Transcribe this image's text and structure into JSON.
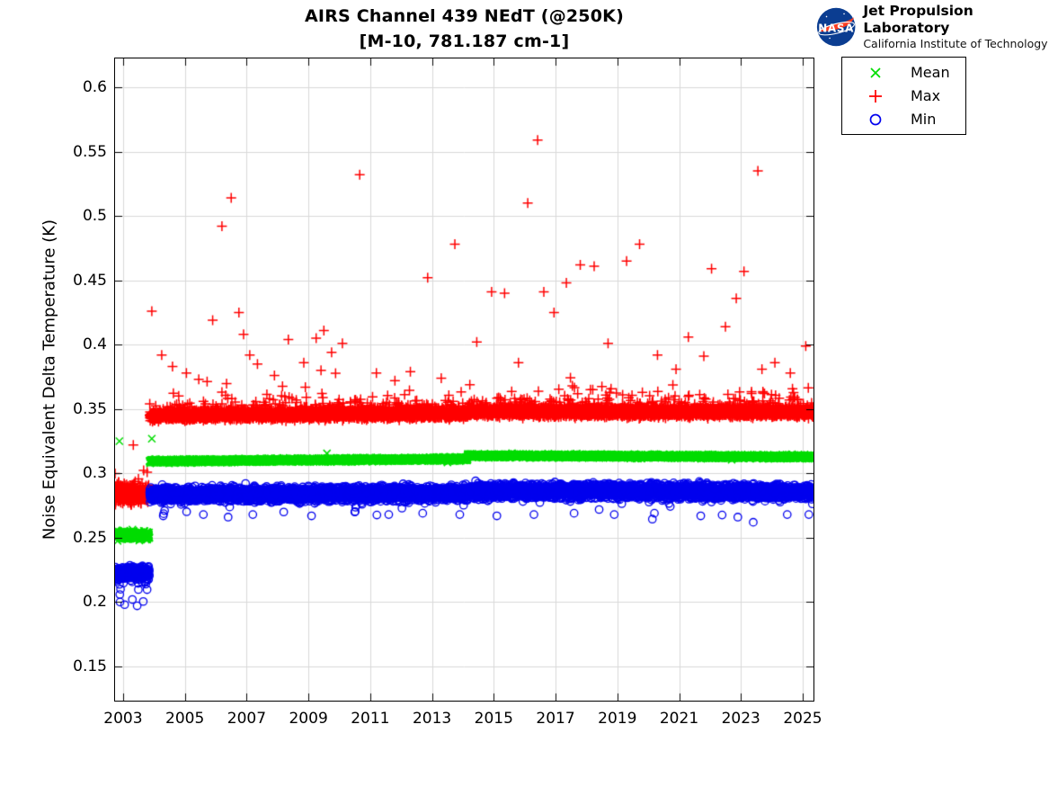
{
  "header": {
    "title_line1": "AIRS Channel 439 NEdT (@250K)",
    "title_line2": "[M-10, 781.187 cm-1]",
    "logo": {
      "org": "NASA",
      "name": "Jet Propulsion Laboratory",
      "sub": "California Institute of Technology",
      "meatball_blue": "#0b3d91",
      "swoosh_red": "#fc3d21"
    }
  },
  "chart_data": {
    "type": "scatter",
    "title": "AIRS Channel 439 NEdT (@250K)",
    "subtitle": "[M-10, 781.187 cm-1]",
    "xlabel": "",
    "ylabel": "Noise Equivalent Delta Temperature (K)",
    "xlim": [
      2002.74,
      2025.35
    ],
    "ylim": [
      0.1234,
      0.6224
    ],
    "xticks": [
      2003,
      2005,
      2007,
      2009,
      2011,
      2013,
      2015,
      2017,
      2019,
      2021,
      2023,
      2025
    ],
    "yticks": [
      0.15,
      0.2,
      0.25,
      0.3,
      0.35,
      0.4,
      0.45,
      0.5,
      0.55,
      0.6
    ],
    "ytick_labels": [
      "0.15",
      "0.2",
      "0.25",
      "0.3",
      "0.35",
      "0.4",
      "0.45",
      "0.5",
      "0.55",
      "0.6"
    ],
    "grid": true,
    "grid_color": "#d9d9d9",
    "axis_color": "#000000",
    "tick_len": 8,
    "legend": {
      "position": "outside-top-right",
      "entries": [
        {
          "label": "Mean",
          "marker": "x",
          "color": "#00dd00"
        },
        {
          "label": "Max",
          "marker": "+",
          "color": "#ff0000"
        },
        {
          "label": "Min",
          "marker": "o",
          "color": "#0000ee"
        }
      ]
    },
    "description": "Daily AIRS channel-439 noise statistics, Sep 2002 to early 2025. All three series jump upward after the Nov 2003 instrument event (Mean ~0.252 to ~0.310 K, Max ~0.284 to ~0.346 K, Min ~0.222 to ~0.284 K) and step up slightly again in early 2014; red Max points show frequent upward outliers to 0.37-0.56 K.",
    "series": [
      {
        "name": "Mean",
        "marker": "x",
        "color": "#00dd00",
        "size": 4,
        "line_width": 1.5,
        "seed": 7,
        "segments": [
          {
            "t0": 2002.74,
            "t1": 2003.85,
            "v0": 0.252,
            "v1": 0.252,
            "spread": 0.0055,
            "per_year": 330
          },
          {
            "t0": 2003.86,
            "t1": 2014.15,
            "v0": 0.3095,
            "v1": 0.3112,
            "spread": 0.0022,
            "per_year": 340
          },
          {
            "t0": 2014.15,
            "t1": 2025.33,
            "v0": 0.3138,
            "v1": 0.3128,
            "spread": 0.0022,
            "per_year": 340
          }
        ],
        "outliers": [
          [
            2002.88,
            0.325
          ],
          [
            2003.93,
            0.327
          ],
          [
            2009.6,
            0.3155
          ],
          [
            2013.5,
            0.3085
          ],
          [
            2022.7,
            0.3105
          ]
        ]
      },
      {
        "name": "Max",
        "marker": "+",
        "color": "#ff0000",
        "size": 5.5,
        "line_width": 1.5,
        "seed": 13,
        "segments": [
          {
            "t0": 2002.74,
            "t1": 2003.85,
            "v0": 0.284,
            "v1": 0.284,
            "spread": 0.011,
            "per_year": 330,
            "tail_up": {
              "p": 0.04,
              "scale": 0.01,
              "max": 0.045
            }
          },
          {
            "t0": 2003.86,
            "t1": 2014.15,
            "v0": 0.345,
            "v1": 0.3465,
            "spread": 0.006,
            "per_year": 340,
            "tail_up": {
              "p": 0.1,
              "scale": 0.005,
              "max": 0.05
            }
          },
          {
            "t0": 2014.15,
            "t1": 2025.33,
            "v0": 0.348,
            "v1": 0.3475,
            "spread": 0.006,
            "per_year": 340,
            "tail_up": {
              "p": 0.1,
              "scale": 0.005,
              "max": 0.05
            }
          }
        ],
        "outliers": [
          [
            2003.93,
            0.426
          ],
          [
            2004.25,
            0.392
          ],
          [
            2004.6,
            0.383
          ],
          [
            2005.05,
            0.378
          ],
          [
            2005.45,
            0.373
          ],
          [
            2005.9,
            0.419
          ],
          [
            2006.2,
            0.492
          ],
          [
            2006.5,
            0.514
          ],
          [
            2006.75,
            0.425
          ],
          [
            2006.9,
            0.408
          ],
          [
            2007.1,
            0.392
          ],
          [
            2007.35,
            0.385
          ],
          [
            2007.9,
            0.376
          ],
          [
            2008.35,
            0.404
          ],
          [
            2008.85,
            0.386
          ],
          [
            2009.25,
            0.405
          ],
          [
            2009.5,
            0.411
          ],
          [
            2009.75,
            0.394
          ],
          [
            2010.1,
            0.401
          ],
          [
            2010.66,
            0.532
          ],
          [
            2011.2,
            0.378
          ],
          [
            2011.8,
            0.372
          ],
          [
            2012.3,
            0.379
          ],
          [
            2012.86,
            0.452
          ],
          [
            2013.3,
            0.374
          ],
          [
            2013.74,
            0.478
          ],
          [
            2014.45,
            0.402
          ],
          [
            2014.93,
            0.441
          ],
          [
            2015.35,
            0.44
          ],
          [
            2015.8,
            0.386
          ],
          [
            2016.1,
            0.51
          ],
          [
            2016.42,
            0.559
          ],
          [
            2016.62,
            0.441
          ],
          [
            2016.95,
            0.425
          ],
          [
            2017.35,
            0.448
          ],
          [
            2017.8,
            0.462
          ],
          [
            2018.25,
            0.461
          ],
          [
            2018.7,
            0.401
          ],
          [
            2019.3,
            0.465
          ],
          [
            2019.72,
            0.478
          ],
          [
            2020.3,
            0.392
          ],
          [
            2020.9,
            0.381
          ],
          [
            2021.3,
            0.406
          ],
          [
            2021.8,
            0.391
          ],
          [
            2022.05,
            0.459
          ],
          [
            2022.5,
            0.414
          ],
          [
            2022.85,
            0.436
          ],
          [
            2023.1,
            0.457
          ],
          [
            2023.55,
            0.535
          ],
          [
            2024.1,
            0.386
          ],
          [
            2024.6,
            0.378
          ],
          [
            2025.1,
            0.399
          ]
        ]
      },
      {
        "name": "Min",
        "marker": "o",
        "color": "#0000ee",
        "size": 4.2,
        "line_width": 1.3,
        "seed": 21,
        "segments": [
          {
            "t0": 2002.74,
            "t1": 2003.85,
            "v0": 0.2225,
            "v1": 0.2225,
            "spread": 0.009,
            "per_year": 330,
            "tail_down": {
              "p": 0.05,
              "scale": 0.006,
              "max": 0.024
            }
          },
          {
            "t0": 2003.86,
            "t1": 2014.15,
            "v0": 0.2835,
            "v1": 0.2845,
            "spread": 0.009,
            "per_year": 340,
            "tail_down": {
              "p": 0.012,
              "scale": 0.005,
              "max": 0.02
            }
          },
          {
            "t0": 2014.15,
            "t1": 2025.33,
            "v0": 0.2865,
            "v1": 0.2855,
            "spread": 0.009,
            "per_year": 340,
            "tail_down": {
              "p": 0.012,
              "scale": 0.005,
              "max": 0.02
            }
          }
        ],
        "outliers": [
          [
            2002.9,
            0.2
          ],
          [
            2003.05,
            0.198
          ],
          [
            2003.3,
            0.202
          ],
          [
            2004.3,
            0.267
          ],
          [
            2005.6,
            0.268
          ],
          [
            2006.4,
            0.266
          ],
          [
            2007.2,
            0.268
          ],
          [
            2008.2,
            0.27
          ],
          [
            2009.1,
            0.267
          ],
          [
            2010.5,
            0.27
          ],
          [
            2011.6,
            0.268
          ],
          [
            2012.7,
            0.269
          ],
          [
            2013.9,
            0.268
          ],
          [
            2015.1,
            0.267
          ],
          [
            2016.3,
            0.268
          ],
          [
            2017.6,
            0.269
          ],
          [
            2018.9,
            0.268
          ],
          [
            2020.2,
            0.269
          ],
          [
            2021.7,
            0.267
          ],
          [
            2022.9,
            0.266
          ],
          [
            2023.4,
            0.262
          ],
          [
            2024.5,
            0.268
          ],
          [
            2025.2,
            0.268
          ]
        ]
      }
    ]
  }
}
